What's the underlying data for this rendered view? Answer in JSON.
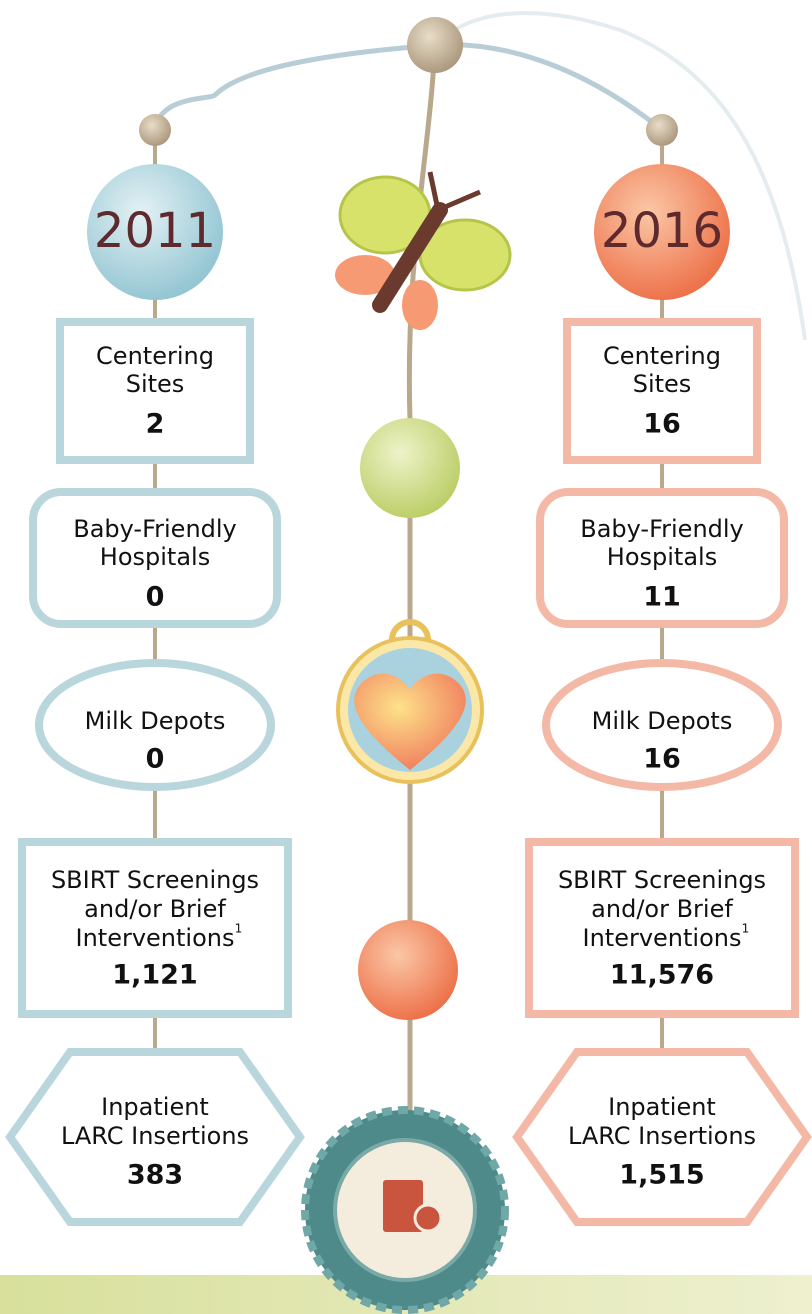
{
  "columns": [
    {
      "year": "2011",
      "items": [
        {
          "lines": [
            "Centering",
            "Sites"
          ],
          "value": "2"
        },
        {
          "lines": [
            "Baby-Friendly",
            "Hospitals"
          ],
          "value": "0"
        },
        {
          "lines": [
            "Milk Depots"
          ],
          "value": "0"
        },
        {
          "lines": [
            "SBIRT Screenings",
            "and/or Brief",
            "Interventions"
          ],
          "footnote": "1",
          "value": "1,121"
        },
        {
          "lines": [
            "Inpatient",
            "LARC Insertions"
          ],
          "value": "383"
        }
      ]
    },
    {
      "year": "2016",
      "items": [
        {
          "lines": [
            "Centering",
            "Sites"
          ],
          "value": "16"
        },
        {
          "lines": [
            "Baby-Friendly",
            "Hospitals"
          ],
          "value": "11"
        },
        {
          "lines": [
            "Milk Depots"
          ],
          "value": "16"
        },
        {
          "lines": [
            "SBIRT Screenings",
            "and/or Brief",
            "Interventions"
          ],
          "footnote": "1",
          "value": "11,576"
        },
        {
          "lines": [
            "Inpatient",
            "LARC Insertions"
          ],
          "value": "1,515"
        }
      ]
    }
  ]
}
